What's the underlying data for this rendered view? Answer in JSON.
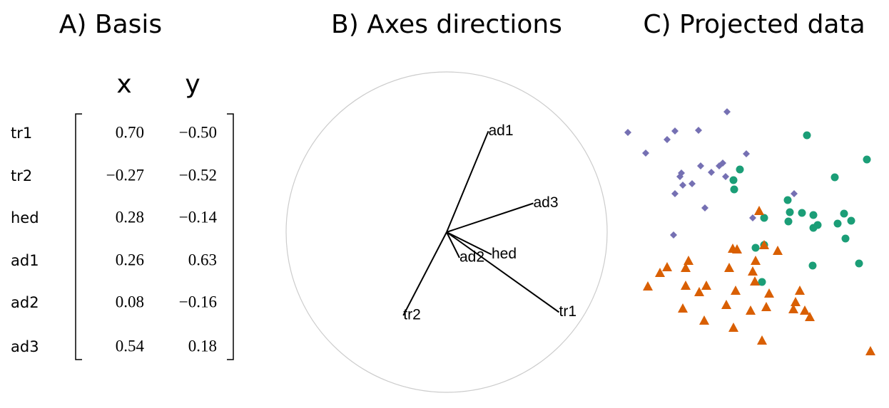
{
  "chart_data": [
    {
      "type": "matrix",
      "title": "A) Basis",
      "columns": [
        "x",
        "y"
      ],
      "rows": [
        "tr1",
        "tr2",
        "hed",
        "ad1",
        "ad2",
        "ad3"
      ],
      "values": [
        [
          0.7,
          -0.5
        ],
        [
          -0.27,
          -0.52
        ],
        [
          0.28,
          -0.14
        ],
        [
          0.26,
          0.63
        ],
        [
          0.08,
          -0.16
        ],
        [
          0.54,
          0.18
        ]
      ],
      "value_labels": [
        [
          "0.70",
          "−0.50"
        ],
        [
          "−0.27",
          "−0.52"
        ],
        [
          "0.28",
          "−0.14"
        ],
        [
          "0.26",
          "0.63"
        ],
        [
          "0.08",
          "−0.16"
        ],
        [
          "0.54",
          "0.18"
        ]
      ]
    },
    {
      "type": "axes",
      "title": "B) Axes directions",
      "color": "#000000"
    },
    {
      "type": "scatter",
      "title": "C) Projected data",
      "xlim": [
        0,
        92
      ],
      "ylim": [
        0,
        95
      ],
      "series": [
        {
          "color": "#7570b3",
          "marker": "diamond",
          "x": [
            5,
            39.75,
            21.5,
            18.75,
            29.75,
            11.25,
            46.5,
            38.25,
            37,
            30.5,
            23.75,
            23.25,
            34.25,
            39.25,
            24.25,
            27.5,
            21.5,
            63.25,
            48.75,
            32,
            21
          ],
          "values": [
            83.5,
            90.75,
            84,
            81,
            84.25,
            76.25,
            76,
            72.75,
            71.75,
            71.75,
            69.25,
            68,
            69.5,
            68,
            65,
            65.5,
            62,
            62,
            53.5,
            57,
            47.5
          ]
        },
        {
          "color": "#1b9e77",
          "marker": "circle",
          "x": [
            67.75,
            88.75,
            44.25,
            42,
            42.25,
            77.5,
            61,
            61.75,
            66,
            70,
            80.75,
            83.25,
            52.75,
            61.25,
            71.5,
            78.5,
            70,
            81.25,
            49.75,
            52.75,
            69.75,
            86,
            52
          ],
          "values": [
            82.5,
            74,
            70.5,
            66.75,
            63.5,
            67.75,
            59.75,
            55.5,
            55.25,
            54.5,
            55,
            52.5,
            53.5,
            52.25,
            51,
            51.5,
            50,
            46.25,
            43,
            44,
            36.75,
            37.5,
            31
          ]
        },
        {
          "color": "#d95f02",
          "marker": "triangle",
          "x": [
            51,
            41.75,
            43.25,
            52.75,
            57.5,
            26.25,
            18.75,
            16.25,
            25.25,
            40.5,
            48.75,
            49.75,
            12,
            25.25,
            32.5,
            42.75,
            30,
            49.5,
            54.5,
            65.25,
            39.5,
            63.75,
            48,
            24.25,
            53.5,
            63,
            67,
            68.75,
            31.75,
            42,
            52,
            90
          ],
          "values": [
            56,
            42.75,
            42.5,
            44,
            42,
            38.5,
            36.25,
            34.25,
            36,
            36,
            34.75,
            38.5,
            29.5,
            29.75,
            29.75,
            28,
            27.5,
            31.25,
            27,
            28,
            23,
            24,
            21,
            21.75,
            22.25,
            21.5,
            21,
            18.75,
            17.5,
            15,
            10.5,
            6.75
          ]
        }
      ]
    }
  ]
}
